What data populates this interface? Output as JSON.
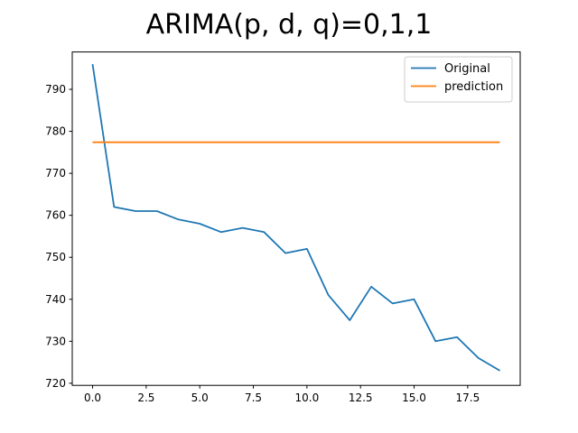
{
  "title": "ARIMA(p, d, q)=0,1,1",
  "colors": {
    "original": "#1f77b4",
    "prediction": "#ff7f0e",
    "spine": "#000000",
    "legend_border": "#cccccc",
    "background": "#ffffff"
  },
  "legend": {
    "items": [
      {
        "label": "Original",
        "color": "#1f77b4"
      },
      {
        "label": "prediction",
        "color": "#ff7f0e"
      }
    ],
    "position": "upper right"
  },
  "chart_data": {
    "type": "line",
    "title": "ARIMA(p, d, q)=0,1,1",
    "xlabel": "",
    "ylabel": "",
    "grid": false,
    "legend_position": "upper right",
    "x": [
      0,
      1,
      2,
      3,
      4,
      5,
      6,
      7,
      8,
      9,
      10,
      11,
      12,
      13,
      14,
      15,
      16,
      17,
      18,
      19
    ],
    "series": [
      {
        "name": "Original",
        "color": "#1f77b4",
        "values": [
          796,
          762,
          761,
          761,
          759,
          758,
          756,
          757,
          756,
          751,
          752,
          741,
          735,
          743,
          739,
          740,
          730,
          731,
          726,
          723
        ]
      },
      {
        "name": "prediction",
        "color": "#ff7f0e",
        "values": [
          777.4,
          777.4,
          777.4,
          777.4,
          777.4,
          777.4,
          777.4,
          777.4,
          777.4,
          777.4,
          777.4,
          777.4,
          777.4,
          777.4,
          777.4,
          777.4,
          777.4,
          777.4,
          777.4,
          777.4
        ]
      }
    ],
    "xlim": [
      -0.95,
      19.95
    ],
    "ylim": [
      719.5,
      798.9
    ],
    "x_ticks": [
      0,
      2.5,
      5,
      7.5,
      10,
      12.5,
      15,
      17.5
    ],
    "x_tick_labels": [
      "0.0",
      "2.5",
      "5.0",
      "7.5",
      "10.0",
      "12.5",
      "15.0",
      "17.5"
    ],
    "y_ticks": [
      720,
      730,
      740,
      750,
      760,
      770,
      780,
      790
    ],
    "y_tick_labels": [
      "720",
      "730",
      "740",
      "750",
      "760",
      "770",
      "780",
      "790"
    ]
  }
}
